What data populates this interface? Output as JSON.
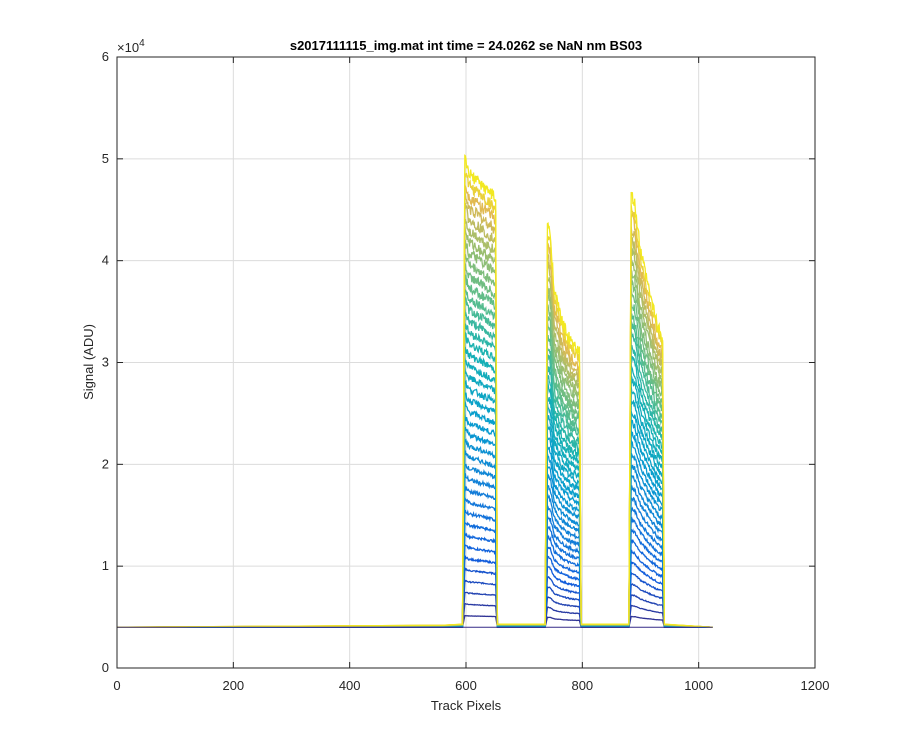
{
  "chart_data": {
    "type": "line",
    "title": "s2017111115_img.mat int time = 24.0262 se  NaN nm BS03",
    "xlabel": "Track Pixels",
    "ylabel": "Signal (ADU)",
    "xlim": [
      0,
      1200
    ],
    "ylim": [
      0,
      60000
    ],
    "xticks": [
      0,
      200,
      400,
      600,
      800,
      1000,
      1200
    ],
    "xtick_labels": [
      "0",
      "200",
      "400",
      "600",
      "800",
      "1000",
      "1200"
    ],
    "yticks": [
      0,
      10000,
      20000,
      30000,
      40000,
      50000,
      60000
    ],
    "ytick_labels": [
      "0",
      "1",
      "2",
      "3",
      "4",
      "5",
      "6"
    ],
    "y_exponent": {
      "base": "×10",
      "power": "4"
    },
    "grid": true,
    "baseline": 4000,
    "x_end": 1024,
    "colormap": "parula",
    "num_curves": 40,
    "peaks": [
      {
        "name": "peak-1",
        "x_start": 598,
        "x_end": 651,
        "top_profile": [
          [
            598,
            50000
          ],
          [
            605,
            48500
          ],
          [
            620,
            47800
          ],
          [
            635,
            47000
          ],
          [
            645,
            46500
          ],
          [
            651,
            46000
          ]
        ]
      },
      {
        "name": "peak-2",
        "x_start": 740,
        "x_end": 795,
        "top_profile": [
          [
            740,
            43500
          ],
          [
            745,
            42500
          ],
          [
            752,
            37000
          ],
          [
            765,
            34000
          ],
          [
            780,
            32000
          ],
          [
            795,
            31000
          ]
        ]
      },
      {
        "name": "peak-3",
        "x_start": 884,
        "x_end": 938,
        "top_profile": [
          [
            884,
            46500
          ],
          [
            890,
            45500
          ],
          [
            900,
            41000
          ],
          [
            915,
            37000
          ],
          [
            930,
            33500
          ],
          [
            938,
            32500
          ]
        ]
      }
    ]
  }
}
